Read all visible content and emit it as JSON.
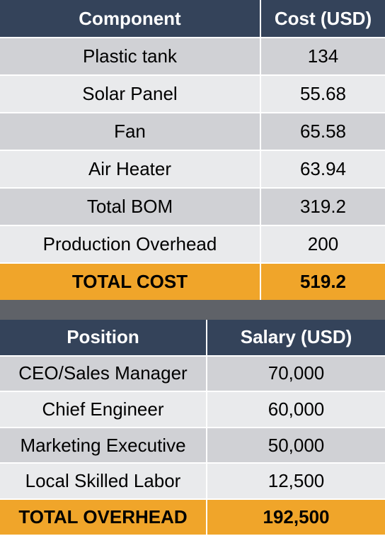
{
  "cost_table": {
    "headers": [
      "Component",
      "Cost (USD)"
    ],
    "rows": [
      [
        "Plastic tank",
        "134"
      ],
      [
        "Solar Panel",
        "55.68"
      ],
      [
        "Fan",
        "65.58"
      ],
      [
        "Air Heater",
        "63.94"
      ],
      [
        "Total BOM",
        "319.2"
      ],
      [
        "Production Overhead",
        "200"
      ]
    ],
    "total": [
      "TOTAL COST",
      "519.2"
    ]
  },
  "salary_table": {
    "headers": [
      "Position",
      "Salary (USD)"
    ],
    "rows": [
      [
        "CEO/Sales Manager",
        "70,000"
      ],
      [
        "Chief Engineer",
        "60,000"
      ],
      [
        "Marketing Executive",
        "50,000"
      ],
      [
        "Local Skilled Labor",
        "12,500"
      ]
    ],
    "total": [
      "TOTAL OVERHEAD",
      "192,500"
    ]
  },
  "colors": {
    "header_bg": "#34435a",
    "row_dark": "#d0d1d5",
    "row_light": "#e9eaec",
    "total_bg": "#f0a52a",
    "separator_band": "#5f6268"
  }
}
